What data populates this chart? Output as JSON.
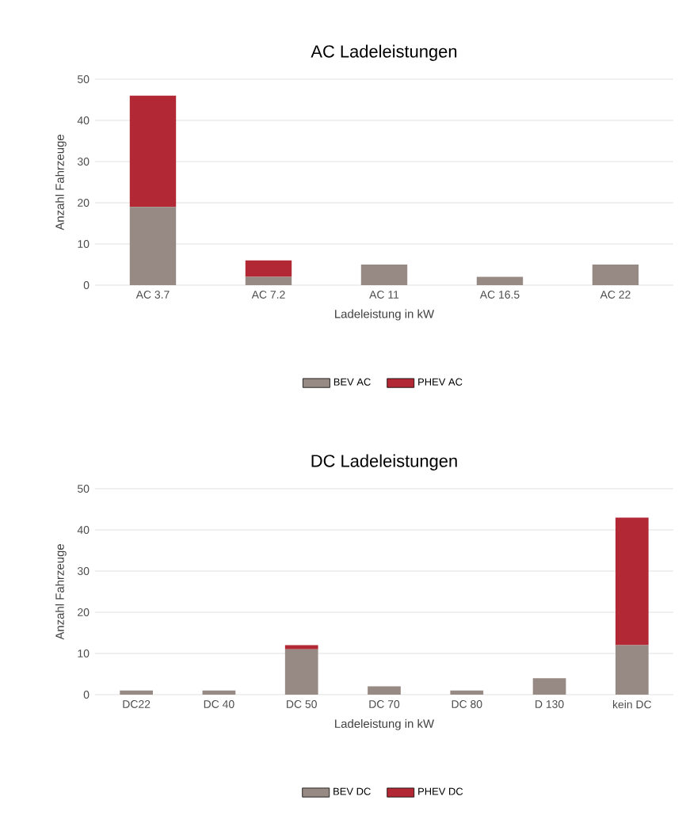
{
  "chart_data": [
    {
      "type": "bar",
      "title": "AC Ladeleistungen",
      "xlabel": "Ladeleistung in kW",
      "ylabel": "Anzahl Fahrzeuge",
      "categories": [
        "AC 3.7",
        "AC 7.2",
        "AC 11",
        "AC 16.5",
        "AC 22"
      ],
      "stacked": true,
      "series": [
        {
          "name": "BEV AC",
          "color": "#978a84",
          "values": [
            19,
            2,
            5,
            2,
            5
          ]
        },
        {
          "name": "PHEV AC",
          "color": "#b22834",
          "values": [
            27,
            4,
            0,
            0,
            0
          ]
        }
      ],
      "ylim": [
        0,
        50
      ],
      "yticks": [
        0,
        10,
        20,
        30,
        40,
        50
      ],
      "grid": "y",
      "legend": "bottom"
    },
    {
      "type": "bar",
      "title": "DC Ladeleistungen",
      "xlabel": "Ladeleistung in kW",
      "ylabel": "Anzahl Fahrzeuge",
      "categories": [
        "DC22",
        "DC 40",
        "DC 50",
        "DC 70",
        "DC 80",
        "D 130",
        "kein DC"
      ],
      "stacked": true,
      "series": [
        {
          "name": "BEV DC",
          "color": "#978a84",
          "values": [
            1,
            1,
            11,
            2,
            1,
            4,
            12
          ]
        },
        {
          "name": "PHEV DC",
          "color": "#b22834",
          "values": [
            0,
            0,
            1,
            0,
            0,
            0,
            31
          ]
        }
      ],
      "ylim": [
        0,
        50
      ],
      "yticks": [
        0,
        10,
        20,
        30,
        40,
        50
      ],
      "grid": "y",
      "legend": "bottom"
    }
  ]
}
